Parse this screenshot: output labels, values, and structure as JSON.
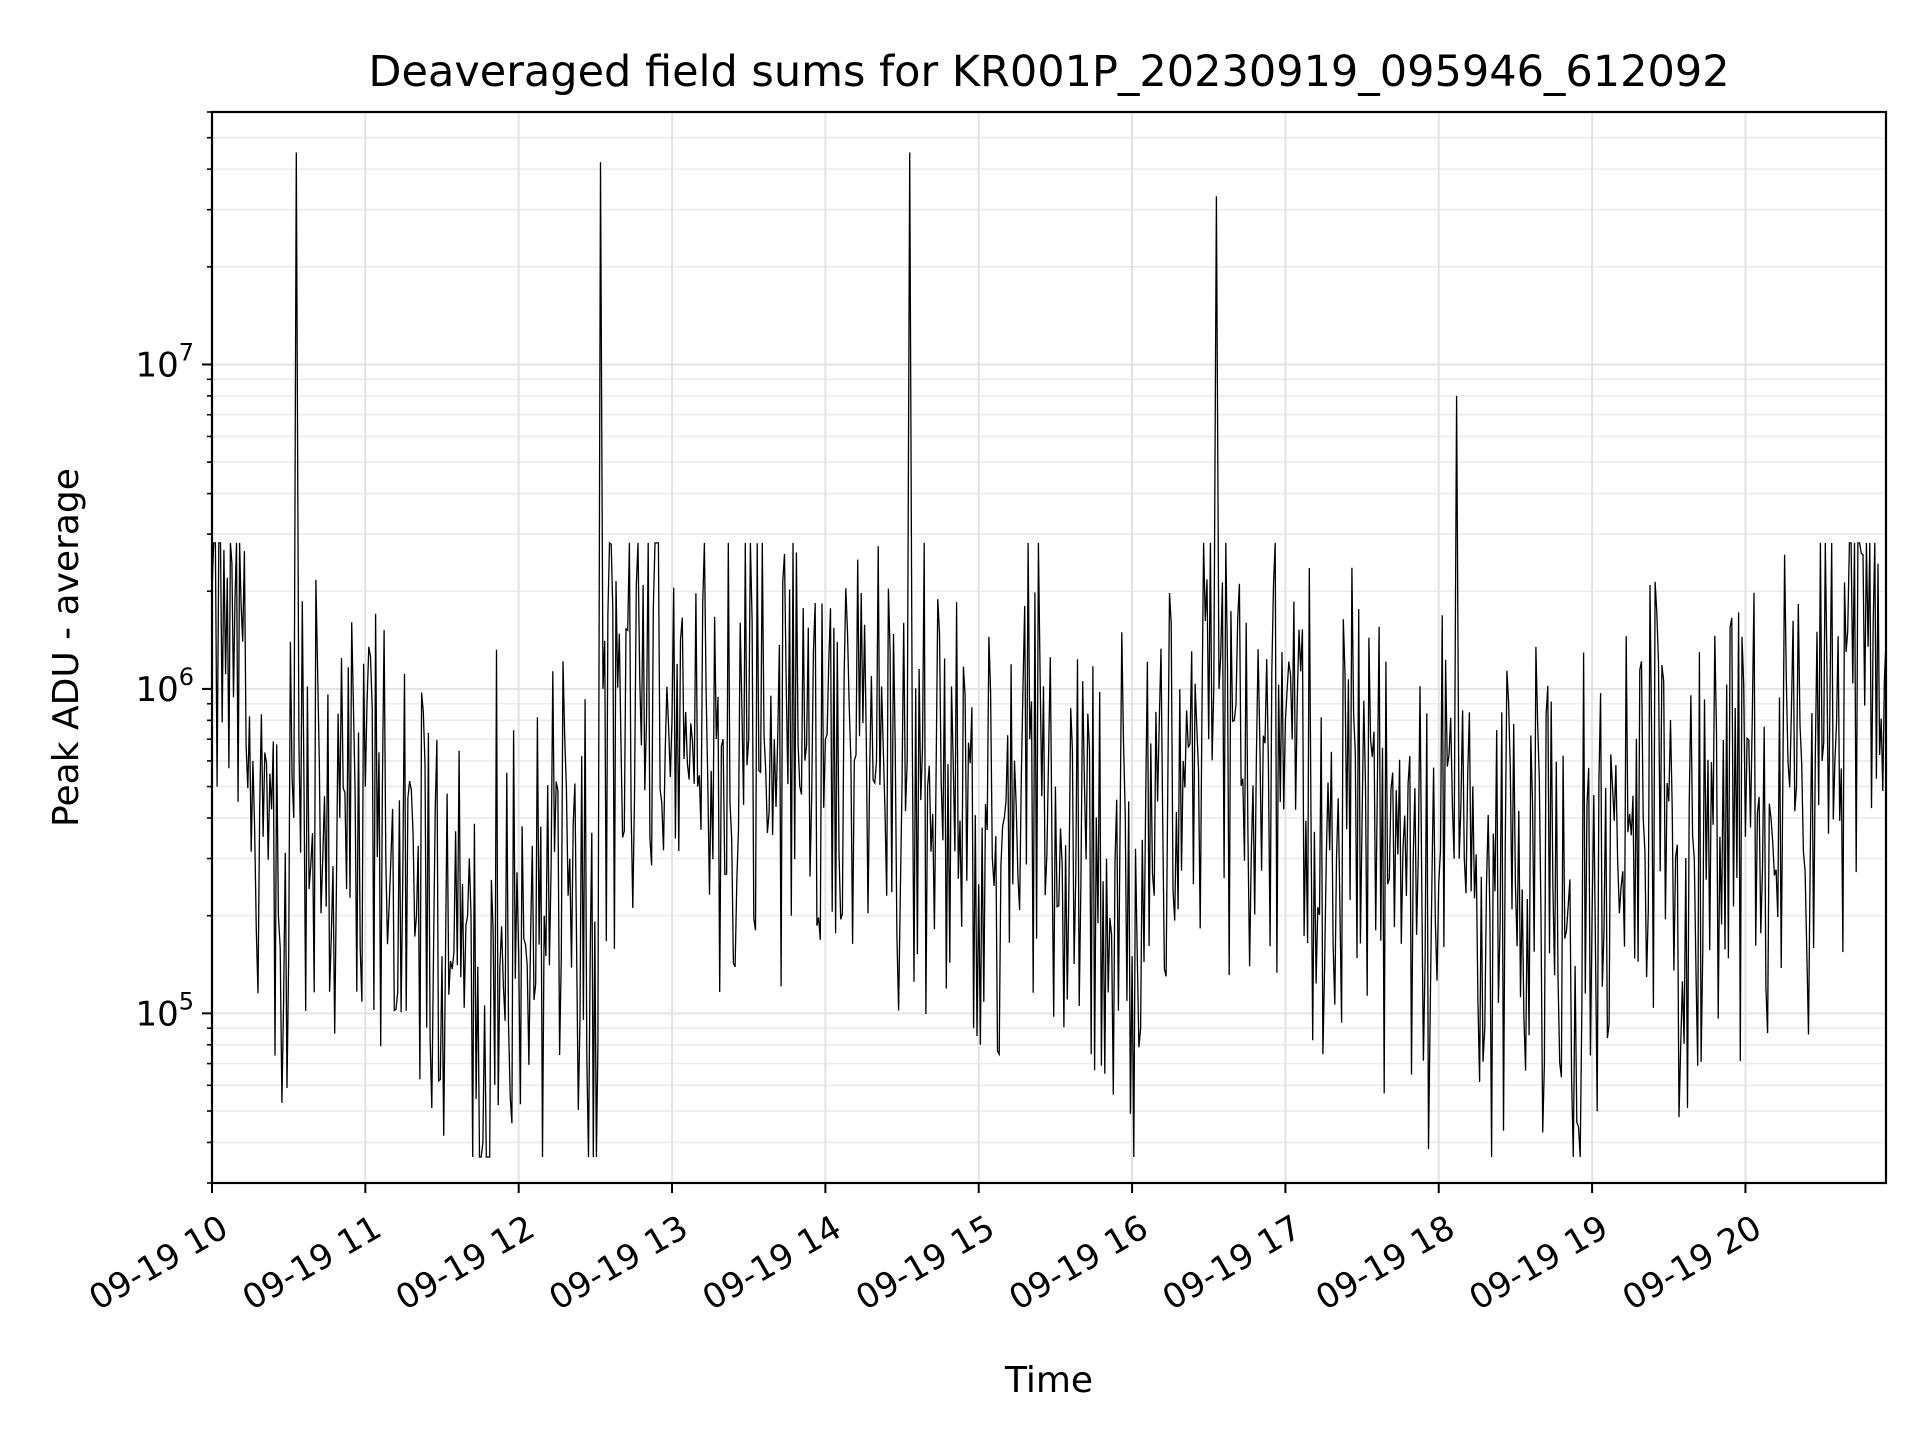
{
  "chart_data": {
    "type": "line",
    "title": "Deaveraged field sums for KR001P_20230919_095946_612092",
    "xlabel": "Time",
    "ylabel": "Peak ADU - average",
    "x_scale": "time",
    "y_scale": "log",
    "grid": true,
    "grid_minor": true,
    "line_color": "#000000",
    "xlim": [
      "2023-09-19 10:00",
      "2023-09-19 20:55"
    ],
    "ylim": [
      30000,
      60000000
    ],
    "x_ticks": [
      "2023-09-19 10:00",
      "2023-09-19 11:00",
      "2023-09-19 12:00",
      "2023-09-19 13:00",
      "2023-09-19 14:00",
      "2023-09-19 15:00",
      "2023-09-19 16:00",
      "2023-09-19 17:00",
      "2023-09-19 18:00",
      "2023-09-19 19:00",
      "2023-09-19 20:00"
    ],
    "x_tick_labels": [
      "09-19 10",
      "09-19 11",
      "09-19 12",
      "09-19 13",
      "09-19 14",
      "09-19 15",
      "09-19 16",
      "09-19 17",
      "09-19 18",
      "09-19 19",
      "09-19 20"
    ],
    "y_ticks": [
      100000,
      1000000,
      10000000
    ],
    "y_tick_labels": [
      {
        "base": "10",
        "exp": "5"
      },
      {
        "base": "10",
        "exp": "6"
      },
      {
        "base": "10",
        "exp": "7"
      }
    ],
    "series": [
      {
        "x": [
          "2023-09-19 10:00",
          "2023-09-19 10:06",
          "2023-09-19 10:09",
          "2023-09-19 10:12",
          "2023-09-19 10:16",
          "2023-09-19 10:20",
          "2023-09-19 10:26",
          "2023-09-19 10:30",
          "2023-09-19 10:32",
          "2023-09-19 10:33",
          "2023-09-19 10:34",
          "2023-09-19 10:36",
          "2023-09-19 10:42",
          "2023-09-19 10:50",
          "2023-09-19 11:00",
          "2023-09-19 11:10",
          "2023-09-19 11:20",
          "2023-09-19 11:30",
          "2023-09-19 11:40",
          "2023-09-19 11:46",
          "2023-09-19 11:50",
          "2023-09-19 12:00",
          "2023-09-19 12:10",
          "2023-09-19 12:20",
          "2023-09-19 12:28",
          "2023-09-19 12:31",
          "2023-09-19 12:32",
          "2023-09-19 12:33",
          "2023-09-19 12:40",
          "2023-09-19 12:50",
          "2023-09-19 13:00",
          "2023-09-19 13:10",
          "2023-09-19 13:20",
          "2023-09-19 13:30",
          "2023-09-19 13:40",
          "2023-09-19 13:50",
          "2023-09-19 14:00",
          "2023-09-19 14:10",
          "2023-09-19 14:20",
          "2023-09-19 14:30",
          "2023-09-19 14:32",
          "2023-09-19 14:33",
          "2023-09-19 14:34",
          "2023-09-19 14:40",
          "2023-09-19 14:50",
          "2023-09-19 15:00",
          "2023-09-19 15:10",
          "2023-09-19 15:20",
          "2023-09-19 15:30",
          "2023-09-19 15:40",
          "2023-09-19 15:50",
          "2023-09-19 16:00",
          "2023-09-19 16:10",
          "2023-09-19 16:20",
          "2023-09-19 16:30",
          "2023-09-19 16:32",
          "2023-09-19 16:33",
          "2023-09-19 16:34",
          "2023-09-19 16:40",
          "2023-09-19 16:50",
          "2023-09-19 17:00",
          "2023-09-19 17:10",
          "2023-09-19 17:20",
          "2023-09-19 17:30",
          "2023-09-19 17:40",
          "2023-09-19 17:50",
          "2023-09-19 18:00",
          "2023-09-19 18:06",
          "2023-09-19 18:07",
          "2023-09-19 18:08",
          "2023-09-19 18:10",
          "2023-09-19 18:20",
          "2023-09-19 18:30",
          "2023-09-19 18:40",
          "2023-09-19 18:50",
          "2023-09-19 19:00",
          "2023-09-19 19:10",
          "2023-09-19 19:20",
          "2023-09-19 19:30",
          "2023-09-19 19:40",
          "2023-09-19 19:50",
          "2023-09-19 20:00",
          "2023-09-19 20:10",
          "2023-09-19 20:20",
          "2023-09-19 20:30",
          "2023-09-19 20:35",
          "2023-09-19 20:40",
          "2023-09-19 20:50",
          "2023-09-19 20:55"
        ],
        "y": [
          2000000,
          2200000,
          1900000,
          1400000,
          600000,
          350000,
          200000,
          150000,
          400000,
          45000000,
          700000,
          500000,
          600000,
          400000,
          500000,
          300000,
          200000,
          150000,
          200000,
          40000,
          180000,
          150000,
          200000,
          300000,
          150000,
          80000,
          42000000,
          1000000,
          700000,
          800000,
          800000,
          500000,
          700000,
          700000,
          700000,
          500000,
          700000,
          600000,
          600000,
          500000,
          600000,
          45000000,
          700000,
          500000,
          600000,
          250000,
          400000,
          700000,
          500000,
          250000,
          300000,
          150000,
          450000,
          600000,
          700000,
          1000000,
          33000000,
          1000000,
          800000,
          700000,
          800000,
          400000,
          300000,
          400000,
          250000,
          300000,
          250000,
          300000,
          8000000,
          300000,
          300000,
          200000,
          250000,
          200000,
          180000,
          200000,
          300000,
          400000,
          450000,
          300000,
          350000,
          350000,
          400000,
          500000,
          600000,
          600000,
          1500000,
          1600000,
          1400000
        ]
      }
    ]
  }
}
